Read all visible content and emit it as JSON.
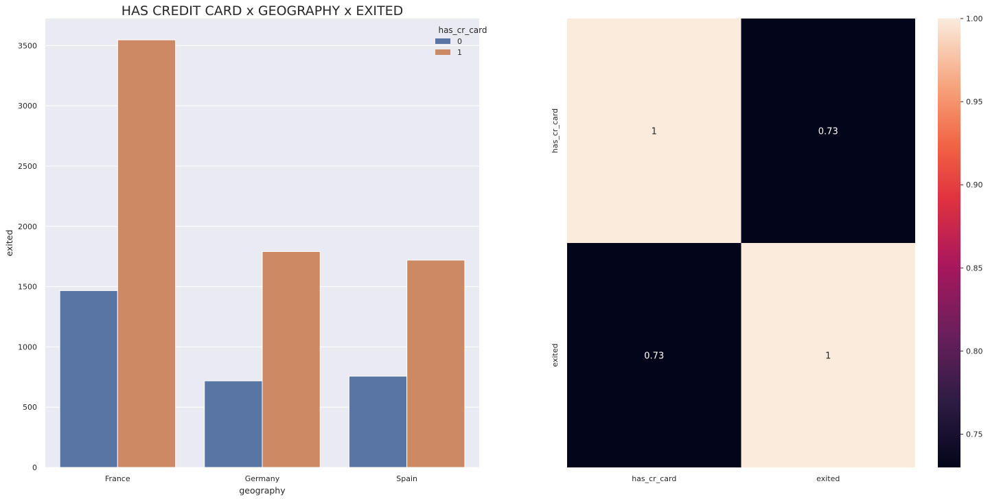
{
  "chart_data": [
    {
      "type": "bar",
      "title": "HAS CREDIT CARD x GEOGRAPHY x EXITED",
      "xlabel": "geography",
      "ylabel": "exited",
      "categories": [
        "France",
        "Germany",
        "Spain"
      ],
      "series": [
        {
          "name": "0",
          "values": [
            1467,
            718,
            757
          ],
          "color": "#5975a4"
        },
        {
          "name": "1",
          "values": [
            3547,
            1791,
            1720
          ],
          "color": "#cc8963"
        }
      ],
      "ylim": [
        0,
        3724
      ],
      "yticks": [
        0,
        500,
        1000,
        1500,
        2000,
        2500,
        3000,
        3500
      ],
      "grid": true,
      "legend": {
        "title": "has_cr_card",
        "placement": "top-right"
      },
      "background": "#eaeaf2"
    },
    {
      "type": "heatmap",
      "xlabels": [
        "has_cr_card",
        "exited"
      ],
      "ylabels": [
        "has_cr_card",
        "exited"
      ],
      "values": [
        [
          1,
          0.73
        ],
        [
          0.73,
          1
        ]
      ],
      "annotations": [
        [
          "1",
          "0.73"
        ],
        [
          "0.73",
          "1"
        ]
      ],
      "colormap": "rocket",
      "vmin": 0.73,
      "vmax": 1.0,
      "colorbar_ticks": [
        0.75,
        0.8,
        0.85,
        0.9,
        0.95,
        1.0
      ],
      "colorbar_tick_labels": [
        "0.75",
        "0.80",
        "0.85",
        "0.90",
        "0.95",
        "1.00"
      ]
    }
  ]
}
